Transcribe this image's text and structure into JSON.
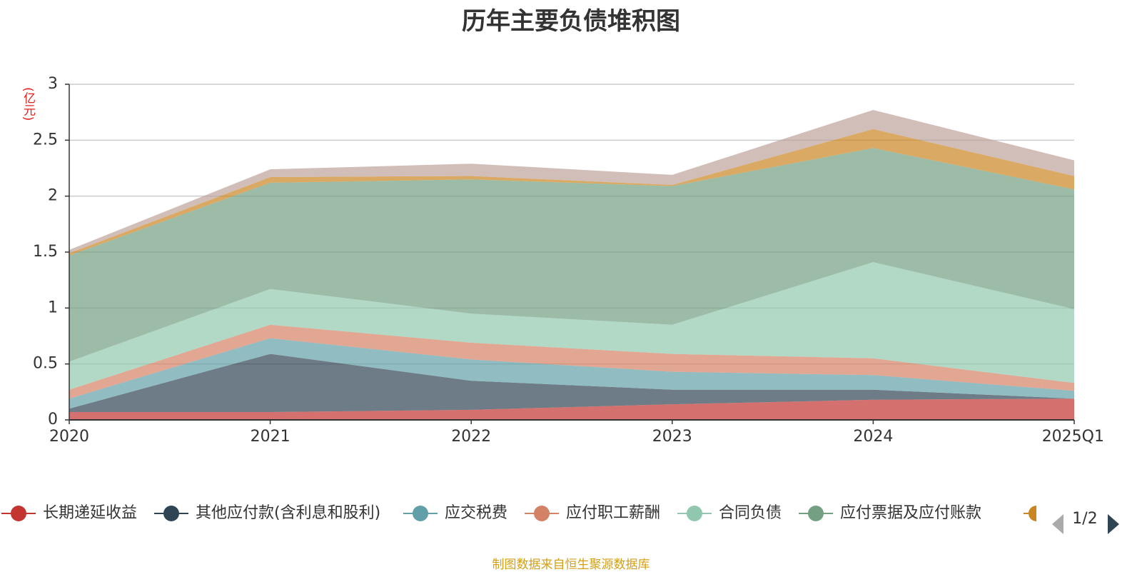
{
  "chart_data": {
    "type": "area",
    "stacked": true,
    "title": "历年主要负债堆积图",
    "unit": "(亿元)",
    "source": "制图数据来自恒生聚源数据库",
    "categories": [
      "2020",
      "2021",
      "2022",
      "2023",
      "2024",
      "2025Q1"
    ],
    "ylim": [
      0,
      3
    ],
    "yticks": [
      "0",
      "0.5",
      "1",
      "1.5",
      "2",
      "2.5",
      "3"
    ],
    "grid": true,
    "legend_position": "bottom",
    "legend_page": "1/2",
    "series": [
      {
        "name": "长期递延收益",
        "color": "#c23531",
        "values": [
          0.07,
          0.07,
          0.09,
          0.14,
          0.18,
          0.19
        ]
      },
      {
        "name": "其他应付款(含利息和股利)",
        "color": "#2f4554",
        "values": [
          0.03,
          0.52,
          0.26,
          0.13,
          0.09,
          0.0
        ]
      },
      {
        "name": "应交税费",
        "color": "#61a0a8",
        "values": [
          0.09,
          0.14,
          0.19,
          0.16,
          0.13,
          0.07
        ]
      },
      {
        "name": "应付职工薪酬",
        "color": "#d48265",
        "values": [
          0.08,
          0.12,
          0.15,
          0.16,
          0.15,
          0.07
        ]
      },
      {
        "name": "合同负债",
        "color": "#91c7ae",
        "values": [
          0.25,
          0.32,
          0.26,
          0.26,
          0.86,
          0.66
        ]
      },
      {
        "name": "应付票据及应付账款",
        "color": "#749f83",
        "values": [
          0.95,
          0.95,
          1.2,
          1.24,
          1.02,
          1.07
        ]
      },
      {
        "name": "",
        "color": "#ca8622",
        "values": [
          0.02,
          0.05,
          0.03,
          0.01,
          0.17,
          0.12
        ]
      },
      {
        "name": "",
        "color": "#bda29a",
        "values": [
          0.03,
          0.07,
          0.11,
          0.09,
          0.17,
          0.14
        ]
      }
    ]
  }
}
